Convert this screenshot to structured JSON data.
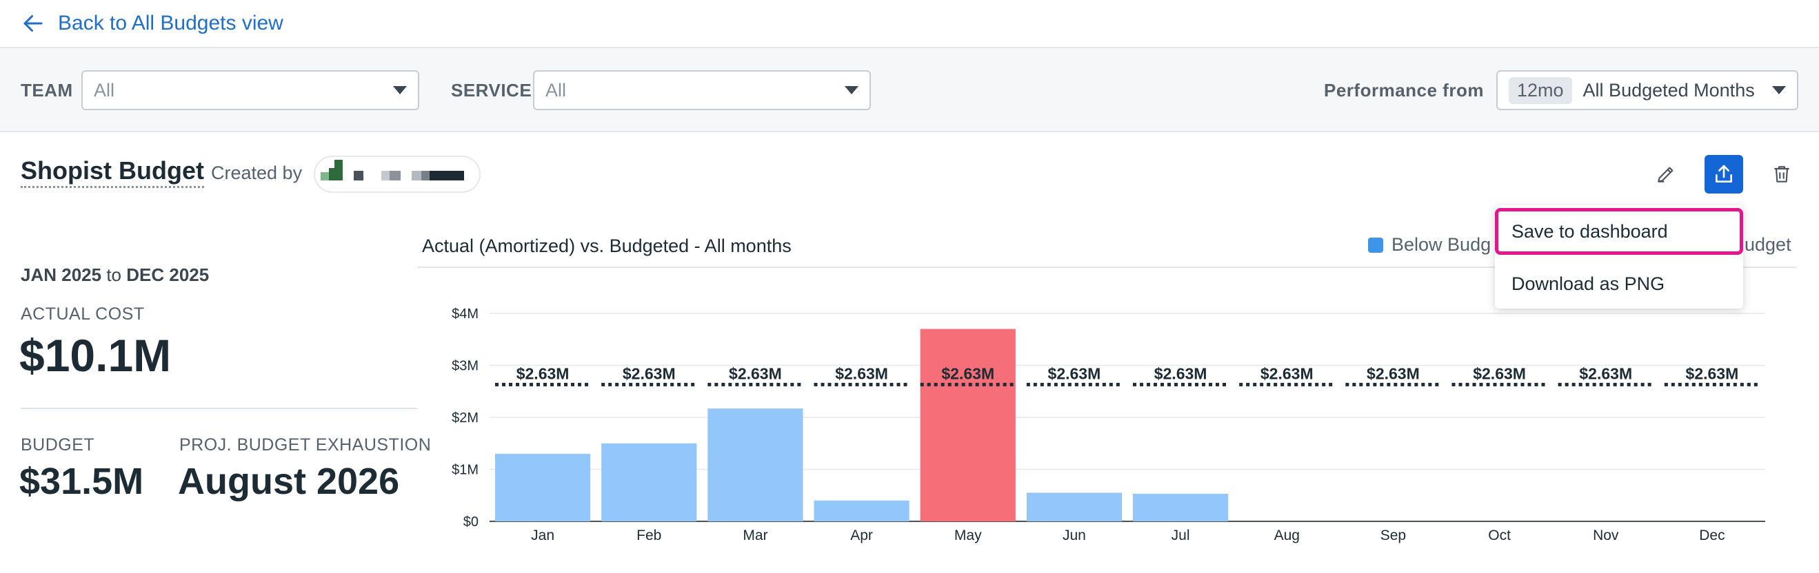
{
  "nav": {
    "back_label": "Back to All Budgets view"
  },
  "filters": {
    "team_label": "TEAM",
    "team_value": "All",
    "service_label": "SERVICE",
    "service_value": "All",
    "perf_label": "Performance from",
    "perf_chip": "12mo",
    "perf_value": "All Budgeted Months"
  },
  "budget": {
    "name": "Shopist Budget",
    "created_by_label": "Created by"
  },
  "stats": {
    "period_start": "JAN 2025",
    "period_to": "to",
    "period_end": "DEC 2025",
    "actual_label": "ACTUAL COST",
    "actual_value": "$10.1M",
    "budget_label": "BUDGET",
    "budget_value": "$31.5M",
    "exhaustion_label": "PROJ. BUDGET EXHAUSTION",
    "exhaustion_value": "August 2026"
  },
  "legend": {
    "below_label": "Below Budg",
    "over_label": "udget"
  },
  "menu": {
    "save_label": "Save to dashboard",
    "download_label": "Download as PNG"
  },
  "icons": {
    "back": "arrow-left-icon",
    "edit": "pencil-icon",
    "share": "export-icon",
    "delete": "trash-icon"
  },
  "colors": {
    "link": "#1f6ec9",
    "share_button": "#1466d6",
    "below_budget": "#93c7fb",
    "over_budget": "#f66e78",
    "legend_below": "#3d94e8",
    "highlight": "#e3168d"
  },
  "chart_data": {
    "type": "bar",
    "title": "Actual (Amortized) vs. Budgeted - All months",
    "categories": [
      "Jan",
      "Feb",
      "Mar",
      "Apr",
      "May",
      "Jun",
      "Jul",
      "Aug",
      "Sep",
      "Oct",
      "Nov",
      "Dec"
    ],
    "series": [
      {
        "name": "Actual",
        "values": [
          1.3,
          1.5,
          2.17,
          0.4,
          3.7,
          0.55,
          0.53,
          0,
          0,
          0,
          0,
          0
        ]
      },
      {
        "name": "Budget",
        "values": [
          2.63,
          2.63,
          2.63,
          2.63,
          2.63,
          2.63,
          2.63,
          2.63,
          2.63,
          2.63,
          2.63,
          2.63
        ]
      }
    ],
    "over_budget": [
      false,
      false,
      false,
      false,
      true,
      false,
      false,
      false,
      false,
      false,
      false,
      false
    ],
    "budget_labels": [
      "$2.63M",
      "$2.63M",
      "$2.63M",
      "$2.63M",
      "$2.63M",
      "$2.63M",
      "$2.63M",
      "$2.63M",
      "$2.63M",
      "$2.63M",
      "$2.63M",
      "$2.63M"
    ],
    "yticks": [
      "$0",
      "$1M",
      "$2M",
      "$3M",
      "$4M"
    ],
    "ylim": [
      0,
      4
    ],
    "grid": true,
    "xlabel": "",
    "ylabel": ""
  }
}
